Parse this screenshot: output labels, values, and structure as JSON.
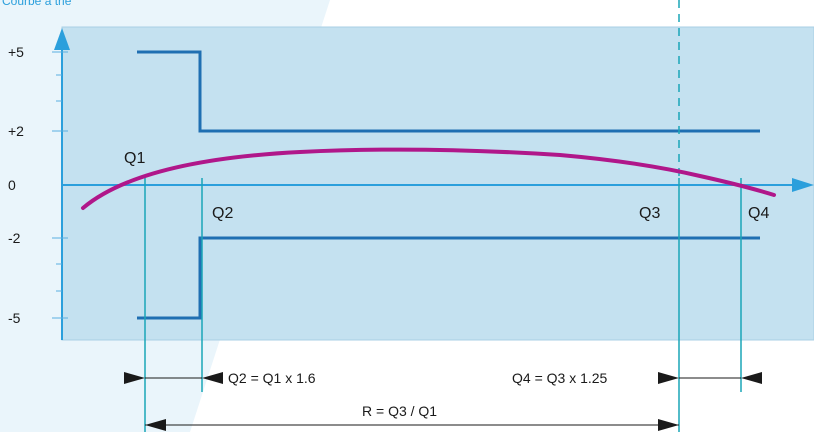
{
  "header_text": "Courbe à trié",
  "y_ticks": [
    "+5",
    "+2",
    "0",
    "-2",
    "-5"
  ],
  "point_labels": {
    "q1": "Q1",
    "q2": "Q2",
    "q3": "Q3",
    "q4": "Q4"
  },
  "formulas": {
    "q2": "Q2 = Q1 x 1.6",
    "q4": "Q4 = Q3 x 1.25",
    "r": "R = Q3 / Q1"
  },
  "colors": {
    "plot_fill": "#c4e1f0",
    "background_light": "#eaf5fb",
    "line_blue": "#1f6fb2",
    "axis_blue": "#2b9fdc",
    "curve_magenta": "#b0178a",
    "vertical_teal": "#1aa6b7"
  }
}
